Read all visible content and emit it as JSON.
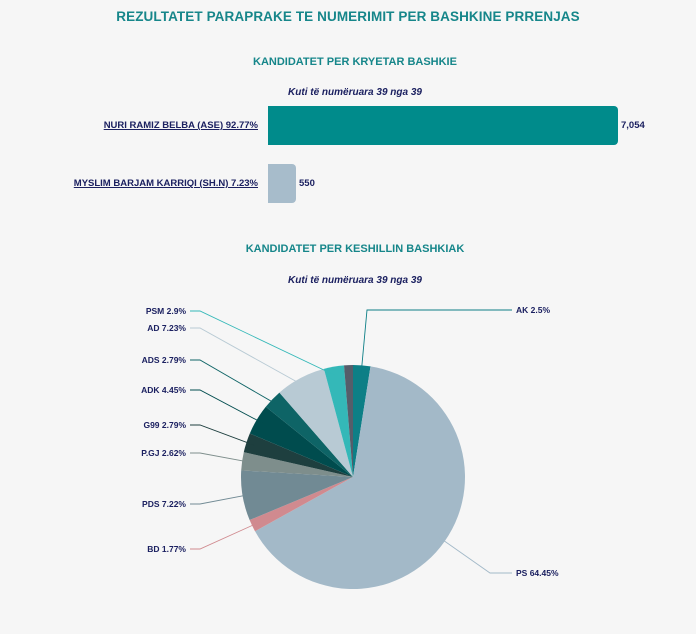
{
  "title": "REZULTATET PARAPRAKE TE NUMERIMIT PER BASHKINE PRRENJAS",
  "chart_data": [
    {
      "type": "bar",
      "title": "KANDIDATET PER KRYETAR BASHKIE",
      "subtitle": "Kuti të numëruara 39 nga 39",
      "orientation": "horizontal",
      "categories": [
        "NURI RAMIZ BELBA (ASE) 92.77%",
        "MYSLIM BARJAM KARRIQI (SH.N) 7.23%"
      ],
      "values": [
        7054,
        550
      ],
      "value_labels": [
        "7,054",
        "550"
      ],
      "colors": [
        "#008b8b",
        "#a7bccb"
      ],
      "grid": false
    },
    {
      "type": "pie",
      "title": "KANDIDATET PER KESHILLIN BASHKIAK",
      "subtitle": "Kuti të numëruara 39 nga 39",
      "slices": [
        {
          "label": "AK 2.5%",
          "value": 2.5,
          "color": "#0d7f86"
        },
        {
          "label": "PS 64.45%",
          "value": 64.45,
          "color": "#a3b9c8"
        },
        {
          "label": "BD 1.77%",
          "value": 1.77,
          "color": "#d08a8f"
        },
        {
          "label": "PDS 7.22%",
          "value": 7.22,
          "color": "#718a94"
        },
        {
          "label": "P.GJ 2.62%",
          "value": 2.62,
          "color": "#7e8e8c"
        },
        {
          "label": "G99 2.79%",
          "value": 2.79,
          "color": "#1e3f3f"
        },
        {
          "label": "ADK 4.45%",
          "value": 4.45,
          "color": "#004c4e"
        },
        {
          "label": "ADS 2.79%",
          "value": 2.79,
          "color": "#0e6466"
        },
        {
          "label": "AD 7.23%",
          "value": 7.23,
          "color": "#b8cad4"
        },
        {
          "label": "PSM 2.9%",
          "value": 2.9,
          "color": "#34b8b8"
        },
        {
          "label": "",
          "value": 1.28,
          "color": "#555d6a"
        }
      ]
    }
  ]
}
